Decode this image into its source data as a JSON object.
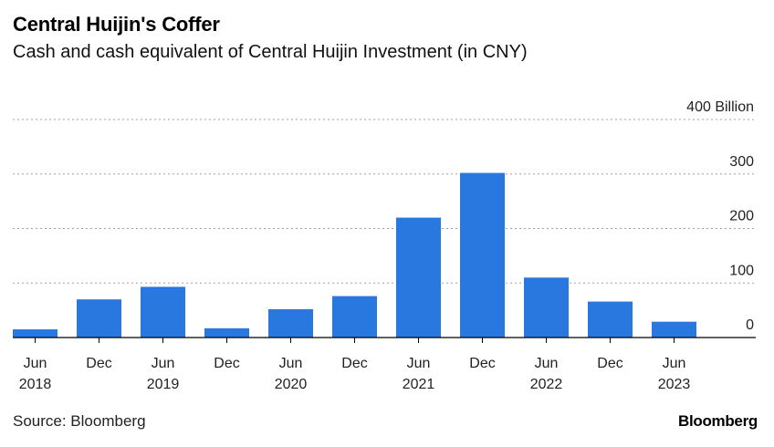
{
  "title": "Central Huijin's Coffer",
  "subtitle": "Cash and cash equivalent of Central Huijin Investment (in CNY)",
  "source": "Source: Bloomberg",
  "brand": "Bloomberg",
  "colors": {
    "bar": "#2878e0",
    "grid": "#a0a0a0",
    "axis": "#000000",
    "text": "#222222"
  },
  "chart_data": {
    "type": "bar",
    "categories": [
      "Jun 2018",
      "Dec",
      "Jun 2019",
      "Dec",
      "Jun 2020",
      "Dec",
      "Jun 2021",
      "Dec",
      "Jun 2022",
      "Dec",
      "Jun 2023"
    ],
    "x_tick_labels": [
      [
        "Jun",
        "2018"
      ],
      [
        "Dec",
        ""
      ],
      [
        "Jun",
        "2019"
      ],
      [
        "Dec",
        ""
      ],
      [
        "Jun",
        "2020"
      ],
      [
        "Dec",
        ""
      ],
      [
        "Jun",
        "2021"
      ],
      [
        "Dec",
        ""
      ],
      [
        "Jun",
        "2022"
      ],
      [
        "Dec",
        ""
      ],
      [
        "Jun",
        "2023"
      ]
    ],
    "values": [
      15,
      70,
      93,
      17,
      52,
      76,
      220,
      302,
      110,
      66,
      29
    ],
    "ylim": [
      0,
      400
    ],
    "yticks": [
      0,
      100,
      200,
      300,
      400
    ],
    "ytick_labels": [
      "0",
      "100",
      "200",
      "300",
      "400 Billion"
    ],
    "grid": true,
    "yaxis_position": "right"
  }
}
